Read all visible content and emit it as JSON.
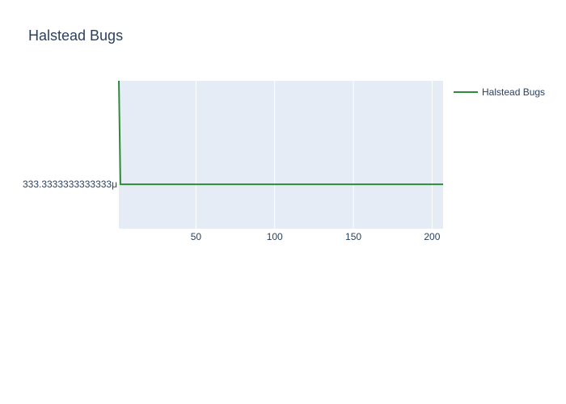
{
  "chart_data": {
    "type": "line",
    "title": "Halstead Bugs",
    "xlabel": "",
    "ylabel": "",
    "x_range": [
      1,
      207
    ],
    "x_ticks": [
      50,
      100,
      150,
      200
    ],
    "y_tick_values": [
      0.000333333333333
    ],
    "y_tick_labels": [
      "333.3333333333333μ"
    ],
    "grid": true,
    "legend_position": "top-right",
    "series": [
      {
        "name": "Halstead Bugs",
        "color": "#2e8b3e",
        "x": [
          1,
          2,
          3,
          207
        ],
        "y": [
          0.000666666666667,
          0.000333333333333,
          0.000333333333333,
          0.000333333333333
        ]
      }
    ]
  },
  "colors": {
    "plot_background": "#e5ecf6",
    "gridline": "#ffffff",
    "text": "#2a3f5f",
    "series": "#2e8b3e"
  }
}
